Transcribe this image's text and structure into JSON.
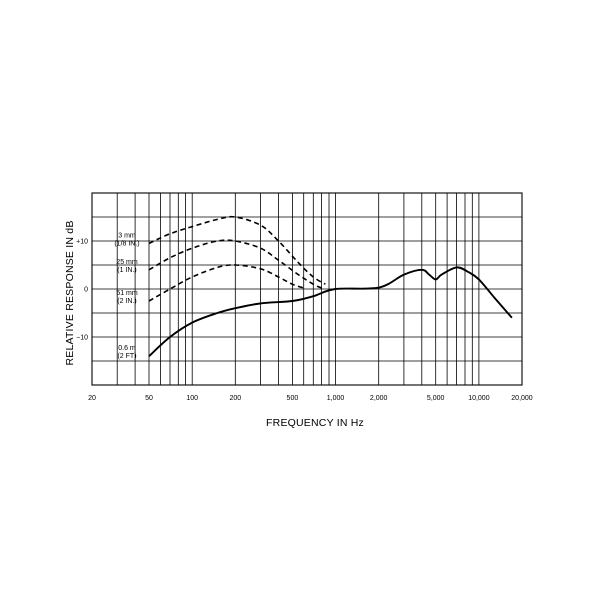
{
  "chart_data": {
    "type": "line",
    "xlabel": "FREQUENCY IN Hz",
    "ylabel": "RELATIVE RESPONSE IN dB",
    "x_scale": "log",
    "xlim": [
      20,
      20000
    ],
    "ylim": [
      -20,
      20
    ],
    "grid": true,
    "x_ticks": [
      {
        "value": 20,
        "label": "20"
      },
      {
        "value": 50,
        "label": "50"
      },
      {
        "value": 100,
        "label": "100"
      },
      {
        "value": 200,
        "label": "200"
      },
      {
        "value": 500,
        "label": "500"
      },
      {
        "value": 1000,
        "label": "1,000"
      },
      {
        "value": 2000,
        "label": "2,000"
      },
      {
        "value": 5000,
        "label": "5,000"
      },
      {
        "value": 10000,
        "label": "10,000"
      },
      {
        "value": 20000,
        "label": "20,000"
      }
    ],
    "y_ticks": [
      {
        "value": 10,
        "label": "+10"
      },
      {
        "value": 0,
        "label": "0"
      },
      {
        "value": -10,
        "label": "−10"
      }
    ],
    "series": [
      {
        "name": "3 mm (1/8 IN.)",
        "label_lines": [
          "3 mm",
          "(1/8 IN.)"
        ],
        "style": "dashed",
        "points": [
          [
            50,
            9.5
          ],
          [
            70,
            11.5
          ],
          [
            100,
            13
          ],
          [
            150,
            14.5
          ],
          [
            200,
            15
          ],
          [
            300,
            13.3
          ],
          [
            400,
            10
          ],
          [
            550,
            5.5
          ],
          [
            700,
            2.5
          ],
          [
            850,
            1
          ]
        ]
      },
      {
        "name": "25 mm (1 IN.)",
        "label_lines": [
          "25 mm",
          "(1 IN.)"
        ],
        "style": "dashed",
        "points": [
          [
            50,
            4
          ],
          [
            70,
            6.5
          ],
          [
            100,
            8.5
          ],
          [
            150,
            10
          ],
          [
            200,
            10
          ],
          [
            300,
            8.5
          ],
          [
            400,
            6
          ],
          [
            550,
            3
          ],
          [
            700,
            1
          ],
          [
            800,
            0.2
          ]
        ]
      },
      {
        "name": "51 mm (2 IN.)",
        "label_lines": [
          "51 mm",
          "(2 IN.)"
        ],
        "style": "dashed",
        "points": [
          [
            50,
            -2.5
          ],
          [
            70,
            0
          ],
          [
            100,
            2.5
          ],
          [
            150,
            4.5
          ],
          [
            200,
            5
          ],
          [
            300,
            4.2
          ],
          [
            400,
            2.5
          ],
          [
            500,
            1
          ],
          [
            600,
            0.2
          ]
        ]
      },
      {
        "name": "0.6 m (2 FT)",
        "label_lines": [
          "0.6 m",
          "(2 FT)"
        ],
        "style": "solid",
        "points": [
          [
            50,
            -14
          ],
          [
            70,
            -10
          ],
          [
            100,
            -7
          ],
          [
            150,
            -5
          ],
          [
            200,
            -4
          ],
          [
            300,
            -3
          ],
          [
            500,
            -2.5
          ],
          [
            700,
            -1.5
          ],
          [
            1000,
            0
          ],
          [
            2000,
            0.3
          ],
          [
            3000,
            3
          ],
          [
            4000,
            4
          ],
          [
            4500,
            3
          ],
          [
            5000,
            2
          ],
          [
            5500,
            3
          ],
          [
            7000,
            4.5
          ],
          [
            8500,
            3.5
          ],
          [
            10000,
            2
          ],
          [
            13000,
            -2
          ],
          [
            17000,
            -6
          ]
        ]
      }
    ]
  }
}
